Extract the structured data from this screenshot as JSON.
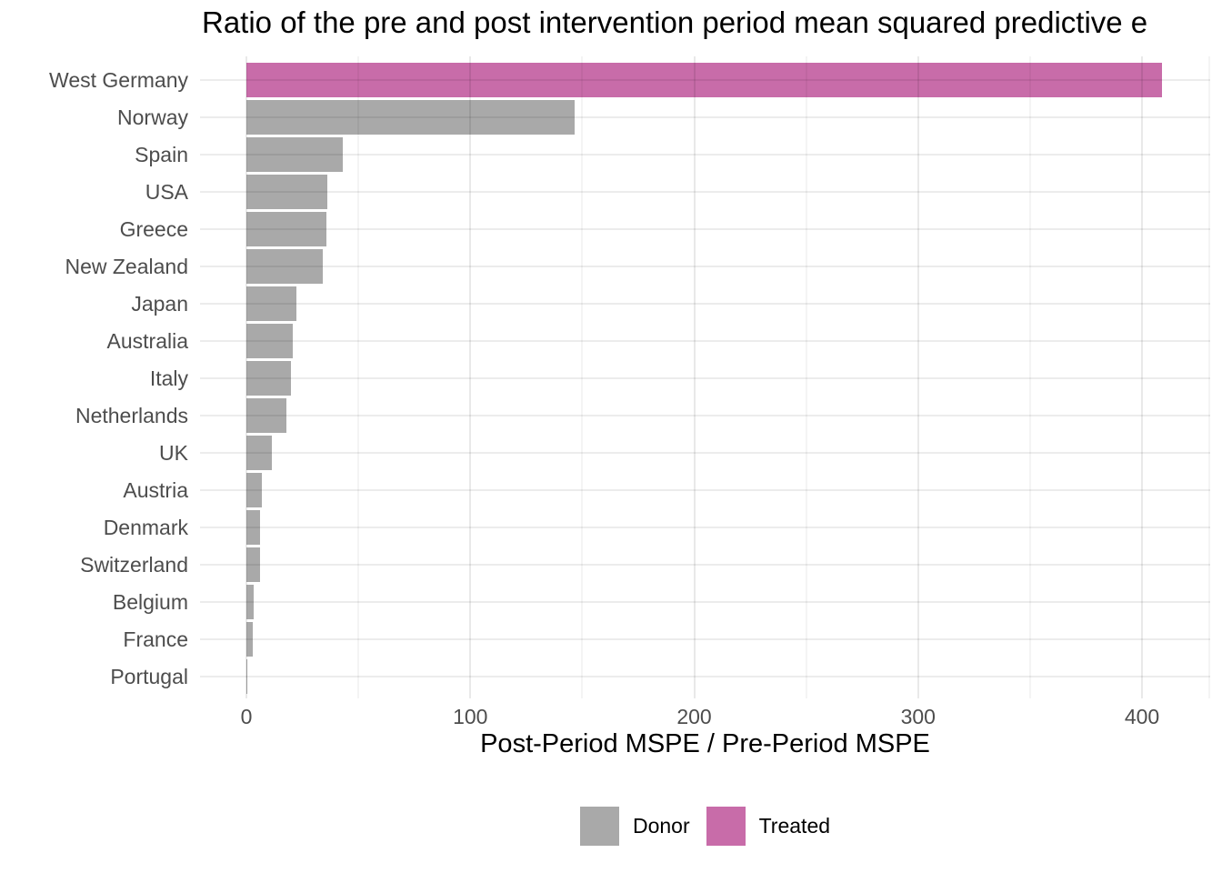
{
  "chart": {
    "title": "Ratio of the pre and post intervention period mean squared predictive e",
    "xlabel": "Post-Period MSPE / Pre-Period MSPE"
  },
  "legend": {
    "items": [
      {
        "label": "Donor",
        "color": "#A9A9A9"
      },
      {
        "label": "Treated",
        "color": "#C86CA9"
      }
    ]
  },
  "chart_data": {
    "type": "bar",
    "orientation": "horizontal",
    "title": "Ratio of the pre and post intervention period mean squared predictive e",
    "xlabel": "Post-Period MSPE / Pre-Period MSPE",
    "ylabel": "",
    "categories": [
      "West Germany",
      "Norway",
      "Spain",
      "USA",
      "Greece",
      "New Zealand",
      "Japan",
      "Australia",
      "Italy",
      "Netherlands",
      "UK",
      "Austria",
      "Denmark",
      "Switzerland",
      "Belgium",
      "France",
      "Portugal"
    ],
    "values": [
      409,
      146.7,
      43.2,
      36.1,
      35.7,
      34.1,
      22.3,
      20.6,
      19.9,
      17.9,
      11.4,
      7.0,
      6.2,
      6.1,
      3.3,
      3.0,
      0.6
    ],
    "groups": [
      "Treated",
      "Donor",
      "Donor",
      "Donor",
      "Donor",
      "Donor",
      "Donor",
      "Donor",
      "Donor",
      "Donor",
      "Donor",
      "Donor",
      "Donor",
      "Donor",
      "Donor",
      "Donor",
      "Donor"
    ],
    "colors": {
      "Donor": "#A9A9A9",
      "Treated": "#C86CA9"
    },
    "x_ticks": [
      0,
      100,
      200,
      300,
      400
    ],
    "x_minor_ticks": [
      50,
      150,
      250,
      350
    ],
    "xlim": [
      -20.7,
      430.5
    ],
    "grid": true,
    "legend_entries": [
      "Donor",
      "Treated"
    ],
    "legend_position": "bottom"
  }
}
